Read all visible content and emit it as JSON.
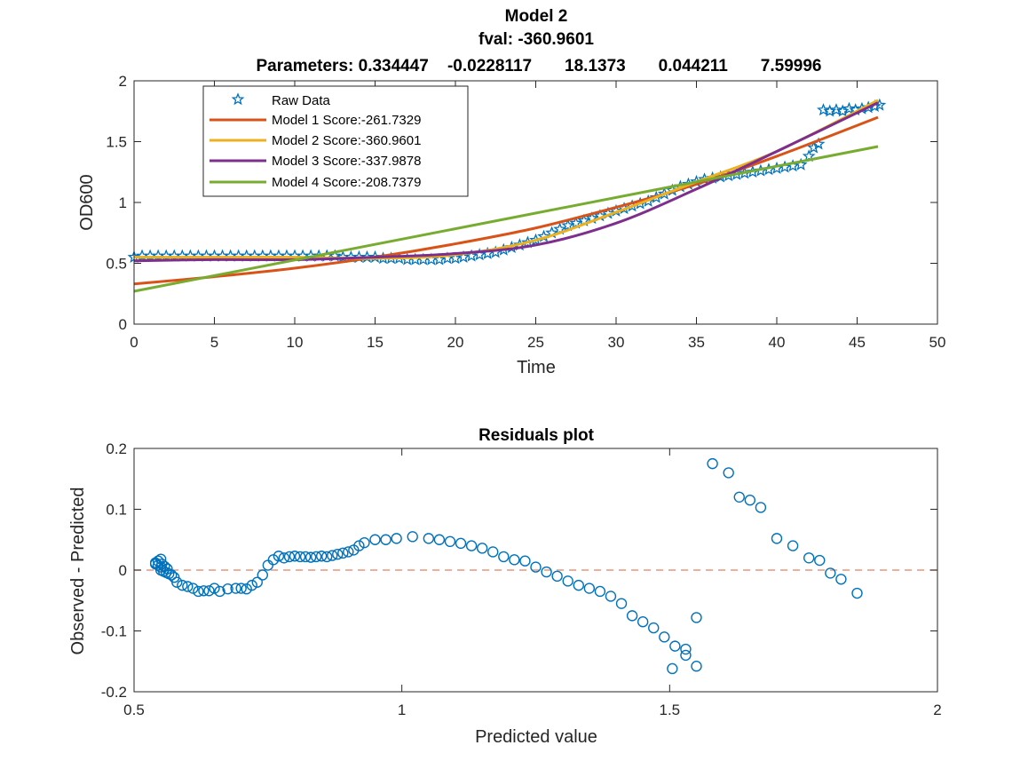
{
  "chart_data": [
    {
      "type": "line",
      "title": "Model 2",
      "subtitle": "fval: -360.9601",
      "parameters_title": "Parameters: 0.334447    -0.0228117       18.1373       0.044211       7.59996",
      "xlabel": "Time",
      "ylabel": "OD600",
      "xlim": [
        0,
        50
      ],
      "ylim": [
        0,
        2
      ],
      "xticks": [
        "0",
        "5",
        "10",
        "15",
        "20",
        "25",
        "30",
        "35",
        "40",
        "45",
        "50"
      ],
      "yticks": [
        "0",
        "0.5",
        "1",
        "1.5",
        "2"
      ],
      "legend": "top-left",
      "grid": false,
      "raw_data": {
        "name": "Raw Data",
        "color": "#0072BD",
        "marker": "star",
        "points": [
          [
            0,
            0.55
          ],
          [
            0.5,
            0.56
          ],
          [
            1,
            0.56
          ],
          [
            1.5,
            0.56
          ],
          [
            2,
            0.56
          ],
          [
            2.5,
            0.56
          ],
          [
            3,
            0.56
          ],
          [
            3.5,
            0.56
          ],
          [
            4,
            0.56
          ],
          [
            4.5,
            0.56
          ],
          [
            5,
            0.56
          ],
          [
            5.5,
            0.56
          ],
          [
            6,
            0.56
          ],
          [
            6.5,
            0.56
          ],
          [
            7,
            0.56
          ],
          [
            7.5,
            0.56
          ],
          [
            8,
            0.56
          ],
          [
            8.5,
            0.56
          ],
          [
            9,
            0.56
          ],
          [
            9.5,
            0.56
          ],
          [
            10,
            0.56
          ],
          [
            10.5,
            0.56
          ],
          [
            11,
            0.56
          ],
          [
            11.5,
            0.56
          ],
          [
            12,
            0.56
          ],
          [
            12.5,
            0.56
          ],
          [
            13,
            0.55
          ],
          [
            13.5,
            0.55
          ],
          [
            14,
            0.55
          ],
          [
            14.5,
            0.55
          ],
          [
            15,
            0.55
          ],
          [
            15.5,
            0.54
          ],
          [
            16,
            0.54
          ],
          [
            16.5,
            0.54
          ],
          [
            17,
            0.53
          ],
          [
            17.5,
            0.53
          ],
          [
            18,
            0.53
          ],
          [
            18.5,
            0.53
          ],
          [
            19,
            0.53
          ],
          [
            19.5,
            0.54
          ],
          [
            20,
            0.54
          ],
          [
            20.5,
            0.55
          ],
          [
            21,
            0.56
          ],
          [
            21.5,
            0.57
          ],
          [
            22,
            0.58
          ],
          [
            22.5,
            0.59
          ],
          [
            23,
            0.61
          ],
          [
            23.5,
            0.63
          ],
          [
            24,
            0.65
          ],
          [
            24.5,
            0.67
          ],
          [
            25,
            0.69
          ],
          [
            25.5,
            0.72
          ],
          [
            26,
            0.75
          ],
          [
            26.5,
            0.78
          ],
          [
            27,
            0.81
          ],
          [
            27.5,
            0.83
          ],
          [
            28,
            0.85
          ],
          [
            28.5,
            0.87
          ],
          [
            29,
            0.89
          ],
          [
            29.5,
            0.91
          ],
          [
            30,
            0.93
          ],
          [
            30.5,
            0.95
          ],
          [
            31,
            0.97
          ],
          [
            31.5,
            0.99
          ],
          [
            32,
            1.01
          ],
          [
            32.5,
            1.04
          ],
          [
            33,
            1.07
          ],
          [
            33.5,
            1.1
          ],
          [
            34,
            1.13
          ],
          [
            34.5,
            1.15
          ],
          [
            35,
            1.17
          ],
          [
            35.5,
            1.19
          ],
          [
            36,
            1.2
          ],
          [
            36.5,
            1.21
          ],
          [
            37,
            1.22
          ],
          [
            37.5,
            1.23
          ],
          [
            38,
            1.24
          ],
          [
            38.5,
            1.25
          ],
          [
            39,
            1.26
          ],
          [
            39.5,
            1.27
          ],
          [
            40,
            1.28
          ],
          [
            40.5,
            1.29
          ],
          [
            41,
            1.3
          ],
          [
            41.5,
            1.31
          ],
          [
            42,
            1.38
          ],
          [
            42.3,
            1.45
          ],
          [
            42.6,
            1.48
          ],
          [
            42.9,
            1.76
          ],
          [
            43.3,
            1.75
          ],
          [
            43.7,
            1.76
          ],
          [
            44.1,
            1.75
          ],
          [
            44.5,
            1.77
          ],
          [
            44.9,
            1.76
          ],
          [
            45.3,
            1.77
          ],
          [
            45.7,
            1.78
          ],
          [
            46.1,
            1.79
          ],
          [
            46.4,
            1.8
          ]
        ]
      },
      "series": [
        {
          "name": "Model 1 Score:-261.7329",
          "color": "#D95319",
          "x": [
            0,
            5,
            10,
            15,
            20,
            25,
            30,
            35,
            40,
            46.3
          ],
          "y": [
            0.33,
            0.39,
            0.46,
            0.55,
            0.66,
            0.79,
            0.96,
            1.15,
            1.38,
            1.7
          ]
        },
        {
          "name": "Model 2 Score:-360.9601",
          "color": "#EDB120",
          "x": [
            0,
            5,
            10,
            15,
            20,
            25,
            30,
            35,
            40,
            46.3
          ],
          "y": [
            0.55,
            0.55,
            0.55,
            0.54,
            0.57,
            0.69,
            0.92,
            1.17,
            1.42,
            1.84
          ]
        },
        {
          "name": "Model 3 Score:-337.9878",
          "color": "#7E2F8E",
          "x": [
            0,
            5,
            10,
            15,
            20,
            25,
            30,
            35,
            40,
            46.3
          ],
          "y": [
            0.52,
            0.53,
            0.53,
            0.55,
            0.58,
            0.65,
            0.83,
            1.11,
            1.42,
            1.82
          ]
        },
        {
          "name": "Model 4 Score:-208.7379",
          "color": "#77AC30",
          "x": [
            0,
            46.3
          ],
          "y": [
            0.27,
            1.46
          ]
        }
      ]
    },
    {
      "type": "scatter",
      "title": "Residuals plot",
      "xlabel": "Predicted value",
      "ylabel": "Observed - Predicted",
      "xlim": [
        0.5,
        2
      ],
      "ylim": [
        -0.2,
        0.2
      ],
      "xticks": [
        "0.5",
        "1",
        "1.5",
        "2"
      ],
      "yticks": [
        "-0.2",
        "-0.1",
        "0",
        "0.1",
        "0.2"
      ],
      "grid": false,
      "marker_color": "#0072BD",
      "zero_line_color": "#E8967A",
      "points": [
        [
          0.54,
          0.01
        ],
        [
          0.54,
          0.012
        ],
        [
          0.545,
          0.015
        ],
        [
          0.545,
          0.008
        ],
        [
          0.55,
          0.005
        ],
        [
          0.55,
          0.018
        ],
        [
          0.55,
          0.0
        ],
        [
          0.552,
          0.01
        ],
        [
          0.555,
          -0.002
        ],
        [
          0.557,
          0.006
        ],
        [
          0.56,
          -0.004
        ],
        [
          0.562,
          0.002
        ],
        [
          0.565,
          -0.006
        ],
        [
          0.57,
          -0.008
        ],
        [
          0.575,
          -0.012
        ],
        [
          0.58,
          -0.02
        ],
        [
          0.59,
          -0.025
        ],
        [
          0.6,
          -0.027
        ],
        [
          0.61,
          -0.03
        ],
        [
          0.62,
          -0.035
        ],
        [
          0.63,
          -0.034
        ],
        [
          0.64,
          -0.034
        ],
        [
          0.65,
          -0.03
        ],
        [
          0.66,
          -0.035
        ],
        [
          0.675,
          -0.031
        ],
        [
          0.69,
          -0.03
        ],
        [
          0.7,
          -0.03
        ],
        [
          0.71,
          -0.031
        ],
        [
          0.72,
          -0.025
        ],
        [
          0.73,
          -0.02
        ],
        [
          0.74,
          -0.008
        ],
        [
          0.75,
          0.008
        ],
        [
          0.76,
          0.017
        ],
        [
          0.77,
          0.023
        ],
        [
          0.78,
          0.02
        ],
        [
          0.79,
          0.022
        ],
        [
          0.8,
          0.023
        ],
        [
          0.81,
          0.022
        ],
        [
          0.82,
          0.022
        ],
        [
          0.83,
          0.021
        ],
        [
          0.84,
          0.022
        ],
        [
          0.85,
          0.023
        ],
        [
          0.86,
          0.022
        ],
        [
          0.87,
          0.024
        ],
        [
          0.88,
          0.026
        ],
        [
          0.89,
          0.028
        ],
        [
          0.9,
          0.03
        ],
        [
          0.91,
          0.033
        ],
        [
          0.92,
          0.04
        ],
        [
          0.93,
          0.045
        ],
        [
          0.95,
          0.05
        ],
        [
          0.97,
          0.05
        ],
        [
          0.99,
          0.052
        ],
        [
          1.02,
          0.055
        ],
        [
          1.05,
          0.052
        ],
        [
          1.07,
          0.05
        ],
        [
          1.09,
          0.047
        ],
        [
          1.11,
          0.044
        ],
        [
          1.13,
          0.04
        ],
        [
          1.15,
          0.036
        ],
        [
          1.17,
          0.03
        ],
        [
          1.19,
          0.022
        ],
        [
          1.21,
          0.017
        ],
        [
          1.23,
          0.015
        ],
        [
          1.25,
          0.005
        ],
        [
          1.27,
          -0.003
        ],
        [
          1.29,
          -0.01
        ],
        [
          1.31,
          -0.018
        ],
        [
          1.33,
          -0.025
        ],
        [
          1.35,
          -0.03
        ],
        [
          1.37,
          -0.035
        ],
        [
          1.39,
          -0.043
        ],
        [
          1.41,
          -0.055
        ],
        [
          1.43,
          -0.075
        ],
        [
          1.45,
          -0.085
        ],
        [
          1.47,
          -0.095
        ],
        [
          1.49,
          -0.11
        ],
        [
          1.51,
          -0.125
        ],
        [
          1.53,
          -0.14
        ],
        [
          1.55,
          -0.158
        ],
        [
          1.505,
          -0.162
        ],
        [
          1.53,
          -0.13
        ],
        [
          1.55,
          -0.078
        ],
        [
          1.58,
          0.175
        ],
        [
          1.61,
          0.16
        ],
        [
          1.63,
          0.12
        ],
        [
          1.65,
          0.115
        ],
        [
          1.67,
          0.103
        ],
        [
          1.7,
          0.052
        ],
        [
          1.73,
          0.04
        ],
        [
          1.76,
          0.02
        ],
        [
          1.78,
          0.016
        ],
        [
          1.8,
          -0.005
        ],
        [
          1.82,
          -0.015
        ],
        [
          1.85,
          -0.038
        ]
      ]
    }
  ]
}
